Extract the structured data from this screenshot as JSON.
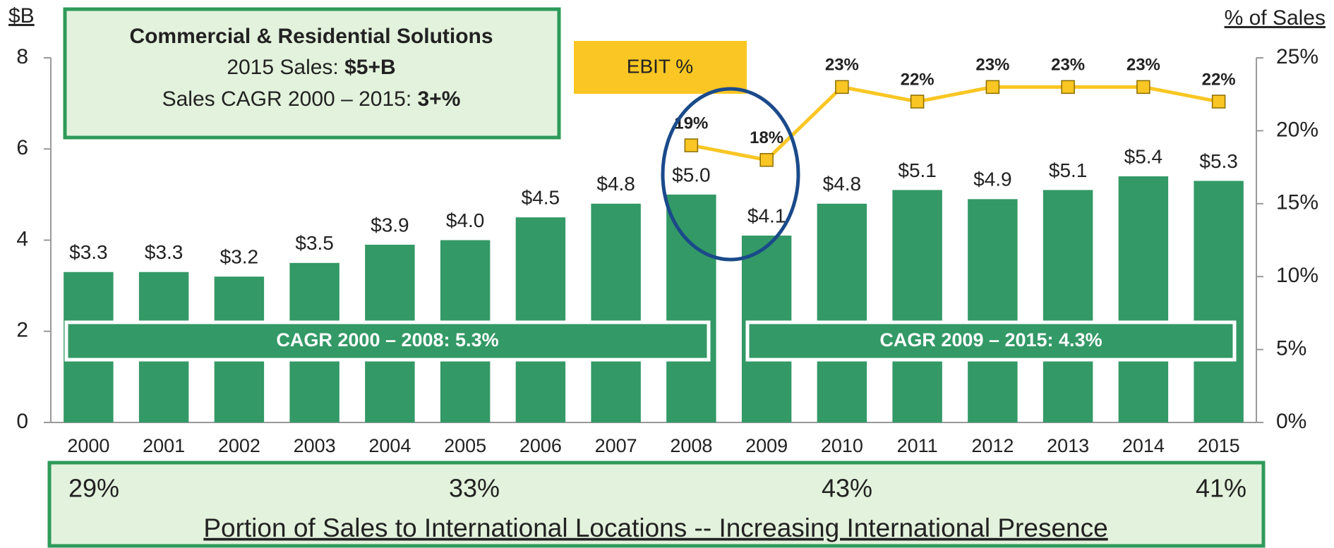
{
  "chart_data": {
    "type": "bar",
    "ylabel": "$B",
    "y2label": "% of Sales",
    "categories": [
      "2000",
      "2001",
      "2002",
      "2003",
      "2004",
      "2005",
      "2006",
      "2007",
      "2008",
      "2009",
      "2010",
      "2011",
      "2012",
      "2013",
      "2014",
      "2015"
    ],
    "series": [
      {
        "type": "bar",
        "color": "#339966",
        "values": [
          3.3,
          3.3,
          3.2,
          3.5,
          3.9,
          4.0,
          4.5,
          4.8,
          5.0,
          4.1,
          4.8,
          5.1,
          4.9,
          5.1,
          5.4,
          5.3
        ],
        "value_labels": [
          "$3.3",
          "$3.3",
          "$3.2",
          "$3.5",
          "$3.9",
          "$4.0",
          "$4.5",
          "$4.8",
          "$5.0",
          "$4.1",
          "$4.8",
          "$5.1",
          "$4.9",
          "$5.1",
          "$5.4",
          "$5.3"
        ]
      },
      {
        "type": "line",
        "name": "EBIT %",
        "axis": "y2",
        "color": "#f9c623",
        "values": [
          null,
          null,
          null,
          null,
          null,
          null,
          null,
          null,
          19,
          18,
          23,
          22,
          23,
          23,
          23,
          22
        ],
        "value_labels": [
          null,
          null,
          null,
          null,
          null,
          null,
          null,
          null,
          "19%",
          "18%",
          "23%",
          "22%",
          "23%",
          "23%",
          "23%",
          "22%"
        ]
      }
    ],
    "ylim": [
      0,
      8
    ],
    "yticks": [
      0,
      2,
      4,
      6,
      8
    ],
    "y2lim": [
      0,
      25
    ],
    "y2ticks": [
      {
        "value": 0,
        "label": "0%"
      },
      {
        "value": 5,
        "label": "5%"
      },
      {
        "value": 10,
        "label": "10%"
      },
      {
        "value": 15,
        "label": "15%"
      },
      {
        "value": 20,
        "label": "20%"
      },
      {
        "value": 25,
        "label": "25%"
      }
    ],
    "annotations": {
      "box_title": "Commercial & Residential Solutions",
      "box_line1": "2015 Sales: ",
      "box_line1_bold": "$5+B",
      "box_line2": "Sales CAGR 2000 – 2015: ",
      "box_line2_bold": "3+%",
      "cagr_1": "CAGR 2000 – 2008: 5.3%",
      "cagr_2": "CAGR 2009 – 2015: 4.3%",
      "international": [
        "29%",
        "33%",
        "43%",
        "41%"
      ],
      "international_caption": "Portion of Sales to International Locations -- Increasing International Presence"
    }
  }
}
